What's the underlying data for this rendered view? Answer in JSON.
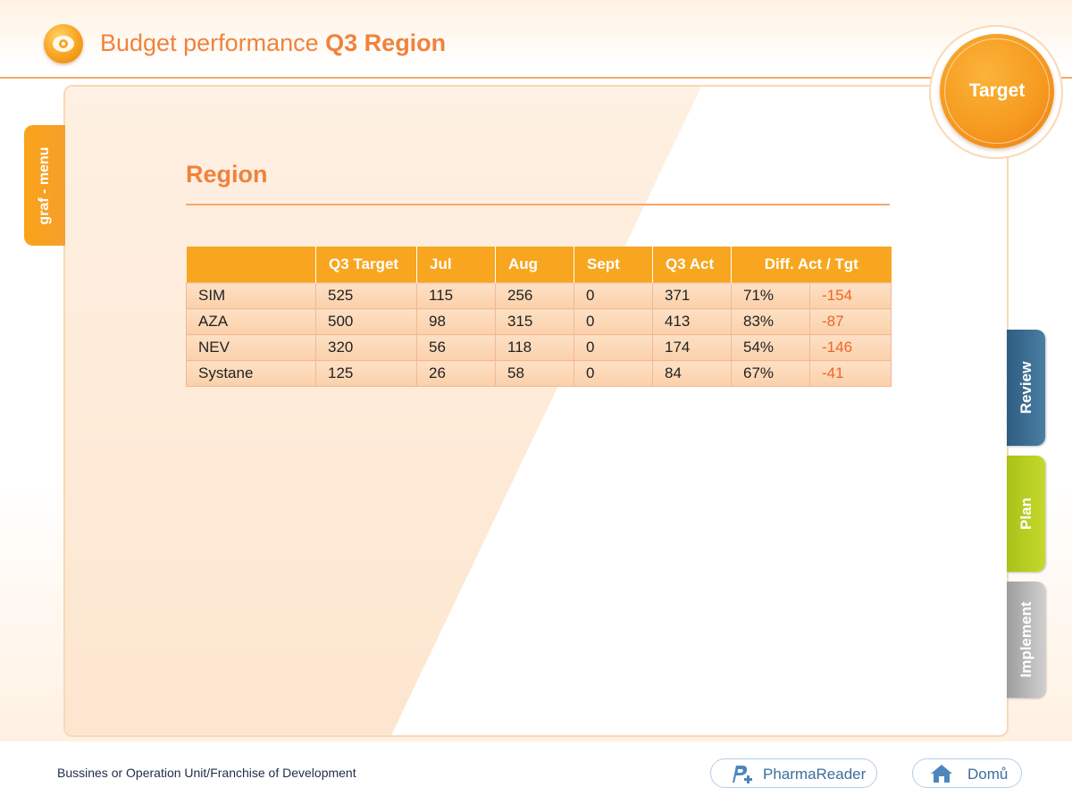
{
  "header": {
    "title_light": "Budget performance ",
    "title_bold": "Q3 Region"
  },
  "target_badge": "Target",
  "side_menu": {
    "label": "graf - menu"
  },
  "right_tabs": [
    {
      "label": "Review",
      "color": "#3a6b91"
    },
    {
      "label": "Plan",
      "color": "#b7cf22"
    },
    {
      "label": "Implement",
      "color": "#b5b5b5"
    }
  ],
  "section": {
    "title": "Region"
  },
  "table": {
    "headers": [
      "",
      "Q3 Target",
      "Jul",
      "Aug",
      "Sept",
      "Q3 Act",
      "Diff. Act / Tgt"
    ],
    "rows": [
      {
        "name": "SIM",
        "q3_target": "525",
        "jul": "115",
        "aug": "256",
        "sept": "0",
        "q3_act": "371",
        "pct": "71%",
        "diff": "-154"
      },
      {
        "name": "AZA",
        "q3_target": "500",
        "jul": "98",
        "aug": "315",
        "sept": "0",
        "q3_act": "413",
        "pct": "83%",
        "diff": "-87"
      },
      {
        "name": "NEV",
        "q3_target": "320",
        "jul": "56",
        "aug": "118",
        "sept": "0",
        "q3_act": "174",
        "pct": "54%",
        "diff": "-146"
      },
      {
        "name": "Systane",
        "q3_target": "125",
        "jul": "26",
        "aug": "58",
        "sept": "0",
        "q3_act": "84",
        "pct": "67%",
        "diff": "-41"
      }
    ]
  },
  "footer": {
    "text": "Bussines or Operation Unit/Franchise of Development",
    "pharmareader_label": "PharmaReader",
    "pharmareader_icon": "pharmareader-icon",
    "home_label": "Domů",
    "home_icon": "home-icon"
  },
  "colors": {
    "accent_orange": "#f0823c",
    "table_header": "#f8a61f",
    "negative": "#ee6528"
  }
}
